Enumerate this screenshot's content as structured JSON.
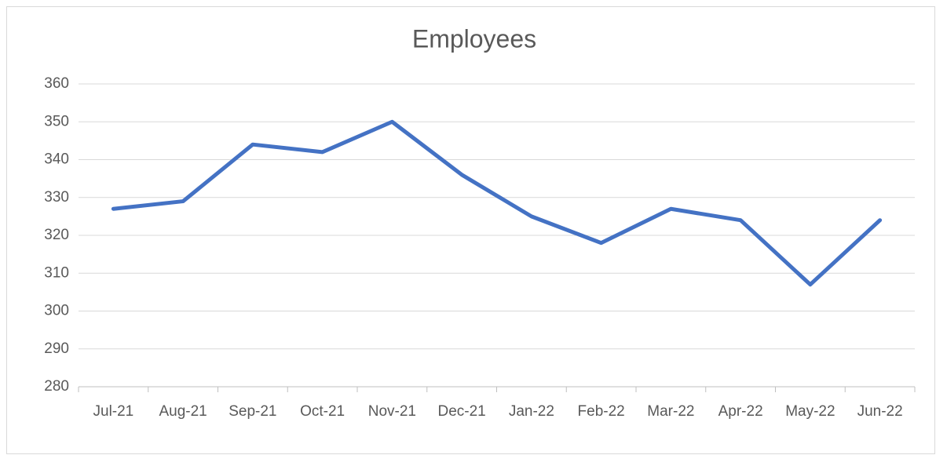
{
  "chart_data": {
    "type": "line",
    "title": "Employees",
    "categories": [
      "Jul-21",
      "Aug-21",
      "Sep-21",
      "Oct-21",
      "Nov-21",
      "Dec-21",
      "Jan-22",
      "Feb-22",
      "Mar-22",
      "Apr-22",
      "May-22",
      "Jun-22"
    ],
    "series": [
      {
        "name": "Employees",
        "color": "#4472c4",
        "values": [
          327,
          329,
          344,
          342,
          350,
          336,
          325,
          318,
          327,
          324,
          307,
          324
        ]
      }
    ],
    "ylim": [
      280,
      360
    ],
    "yticks": [
      280,
      290,
      300,
      310,
      320,
      330,
      340,
      350,
      360
    ],
    "grid": true
  }
}
